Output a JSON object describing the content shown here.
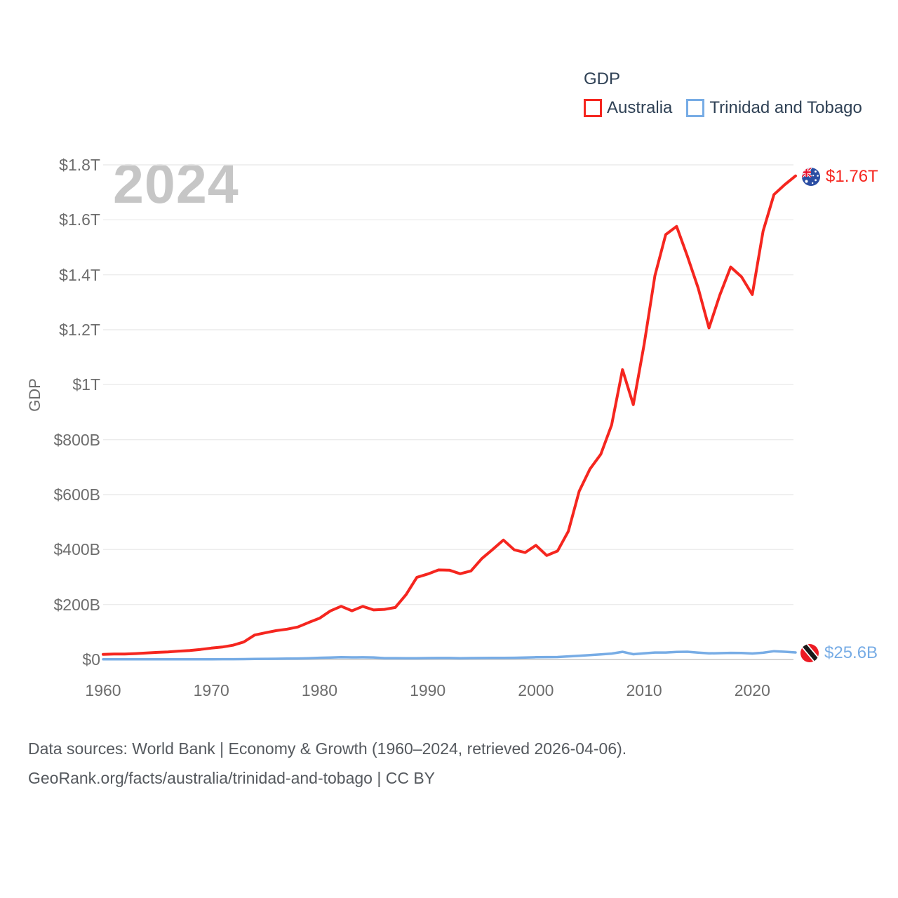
{
  "legend": {
    "title": "GDP",
    "items": [
      {
        "label": "Australia"
      },
      {
        "label": "Trinidad and Tobago"
      }
    ]
  },
  "watermark": "2024",
  "end_labels": [
    {
      "series": "Australia",
      "value": "$1.76T"
    },
    {
      "series": "Trinidad and Tobago",
      "value": "$25.6B"
    }
  ],
  "footer": {
    "line1": "Data sources: World Bank | Economy & Growth (1960–2024, retrieved 2026-04-06).",
    "line2": "GeoRank.org/facts/australia/trinidad-and-tobago | CC BY"
  },
  "colors": {
    "australia": "#f5261f",
    "trinidad": "#77ace5",
    "grid": "#ececec",
    "axis_zero_line": "#d4d4d4",
    "tick_text": "#6d6d6d",
    "legend_text": "#2f4155",
    "watermark_text": "#c6c6c6",
    "footer_text": "#55595e"
  },
  "chart_data": {
    "type": "line",
    "title": "GDP",
    "xlabel": "",
    "ylabel": "GDP",
    "units": "USD (nominal), billions",
    "grid": true,
    "legend_position": "top-right",
    "xlim": [
      1960,
      2024
    ],
    "ylim": [
      0,
      1800
    ],
    "x_ticks": [
      1960,
      1970,
      1980,
      1990,
      2000,
      2010,
      2020
    ],
    "y_ticks": [
      {
        "value": 0,
        "label": "$0"
      },
      {
        "value": 200,
        "label": "$200B"
      },
      {
        "value": 400,
        "label": "$400B"
      },
      {
        "value": 600,
        "label": "$600B"
      },
      {
        "value": 800,
        "label": "$800B"
      },
      {
        "value": 1000,
        "label": "$1T"
      },
      {
        "value": 1200,
        "label": "$1.2T"
      },
      {
        "value": 1400,
        "label": "$1.4T"
      },
      {
        "value": 1600,
        "label": "$1.6T"
      },
      {
        "value": 1800,
        "label": "$1.8T"
      }
    ],
    "x": [
      1960,
      1961,
      1962,
      1963,
      1964,
      1965,
      1966,
      1967,
      1968,
      1969,
      1970,
      1971,
      1972,
      1973,
      1974,
      1975,
      1976,
      1977,
      1978,
      1979,
      1980,
      1981,
      1982,
      1983,
      1984,
      1985,
      1986,
      1987,
      1988,
      1989,
      1990,
      1991,
      1992,
      1993,
      1994,
      1995,
      1996,
      1997,
      1998,
      1999,
      2000,
      2001,
      2002,
      2003,
      2004,
      2005,
      2006,
      2007,
      2008,
      2009,
      2010,
      2011,
      2012,
      2013,
      2014,
      2015,
      2016,
      2017,
      2018,
      2019,
      2020,
      2021,
      2022,
      2023,
      2024
    ],
    "series": [
      {
        "name": "Australia",
        "color": "#f5261f",
        "final_label": "$1.76T",
        "values_unit": "billion USD",
        "values": [
          18.6,
          19.7,
          19.9,
          21.5,
          23.8,
          25.9,
          27.3,
          30.4,
          32.7,
          36.6,
          41.3,
          45.1,
          51.9,
          63.7,
          88.8,
          97.2,
          104.9,
          110.2,
          118.2,
          134.5,
          149.8,
          176.6,
          193.6,
          177.3,
          193.4,
          180.2,
          182.2,
          189.1,
          235.9,
          299.0,
          310.9,
          325.7,
          324.9,
          312.0,
          322.2,
          367.2,
          400.3,
          434.6,
          399.0,
          389.0,
          415.4,
          378.3,
          394.7,
          466.5,
          612.5,
          693.4,
          747.0,
          853.4,
          1054.6,
          927.2,
          1146.1,
          1396.6,
          1546.2,
          1576.2,
          1467.5,
          1351.3,
          1206.5,
          1326.2,
          1428.3,
          1392.7,
          1327.8,
          1559.0,
          1692.0,
          1728.1,
          1760.0
        ]
      },
      {
        "name": "Trinidad and Tobago",
        "color": "#77ace5",
        "final_label": "$25.6B",
        "values_unit": "billion USD",
        "values": [
          0.5,
          0.6,
          0.6,
          0.7,
          0.7,
          0.7,
          0.8,
          0.8,
          0.8,
          0.8,
          0.8,
          0.9,
          1.1,
          1.3,
          2.0,
          2.4,
          2.5,
          3.1,
          3.6,
          4.6,
          6.2,
          6.9,
          8.1,
          7.7,
          7.8,
          7.4,
          4.8,
          4.8,
          4.5,
          4.3,
          5.1,
          5.3,
          5.4,
          4.6,
          5.0,
          5.3,
          5.8,
          5.7,
          6.0,
          6.8,
          8.2,
          8.8,
          9.0,
          11.3,
          13.3,
          16.0,
          18.4,
          21.5,
          27.9,
          19.2,
          22.2,
          25.4,
          25.2,
          27.3,
          28.1,
          25.0,
          22.2,
          23.0,
          24.1,
          23.8,
          21.6,
          24.5,
          30.1,
          28.1,
          25.6
        ]
      }
    ]
  }
}
